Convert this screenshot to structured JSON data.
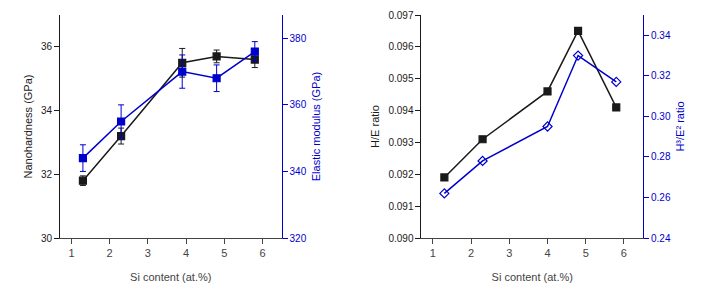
{
  "chart_data": [
    {
      "type": "line",
      "x": [
        1.3,
        2.3,
        3.9,
        4.8,
        5.8
      ],
      "xlabel": "Si content (at.%)",
      "ylabel": "Nanohardness (GPa)",
      "y2label": "Elastic modulus (GPa)",
      "xlim": [
        0.7,
        6.5
      ],
      "xticks": [
        1,
        2,
        3,
        4,
        5,
        6
      ],
      "ylim": [
        30,
        37
      ],
      "yticks": [
        30,
        32,
        34,
        36
      ],
      "y2lim": [
        320,
        387
      ],
      "y2ticks": [
        320,
        340,
        360,
        380
      ],
      "grid": false,
      "series": [
        {
          "color": "#1a1a1a",
          "marker": "square",
          "line_style": "solid",
          "values": [
            31.8,
            33.2,
            35.5,
            35.7,
            35.6
          ],
          "errors": [
            0.15,
            0.25,
            0.45,
            0.2,
            0.25
          ]
        },
        {
          "axis": "y2",
          "color": "#0000cc",
          "marker": "square",
          "line_style": "solid",
          "values": [
            344,
            355,
            370,
            368,
            376
          ],
          "errors": [
            4,
            5,
            5,
            4,
            3
          ]
        }
      ]
    },
    {
      "type": "line",
      "x": [
        1.3,
        2.3,
        4.0,
        4.8,
        5.8
      ],
      "xlabel": "Si content (at.%)",
      "ylabel": "H/E ratio",
      "y2label": "H³/E² ratio",
      "xlim": [
        0.7,
        6.5
      ],
      "xticks": [
        1,
        2,
        3,
        4,
        5,
        6
      ],
      "ylim": [
        0.09,
        0.097
      ],
      "yticks": [
        {
          "value": 0.09,
          "label": "0.090"
        },
        0.091,
        0.092,
        0.093,
        0.094,
        0.095,
        0.096,
        0.097
      ],
      "y2lim": [
        0.24,
        0.35
      ],
      "y2ticks": [
        0.24,
        0.26,
        0.28,
        {
          "value": 0.3,
          "label": "0.30"
        },
        0.32,
        0.34
      ],
      "grid": false,
      "series": [
        {
          "color": "#1a1a1a",
          "marker": "square",
          "line_style": "solid",
          "values": [
            0.0919,
            0.0931,
            0.0946,
            0.0965,
            0.0941
          ]
        },
        {
          "axis": "y2",
          "color": "#0000cc",
          "marker": "diamond-open",
          "line_style": "solid",
          "values": [
            0.262,
            0.278,
            0.295,
            0.33,
            0.317
          ]
        }
      ]
    }
  ]
}
